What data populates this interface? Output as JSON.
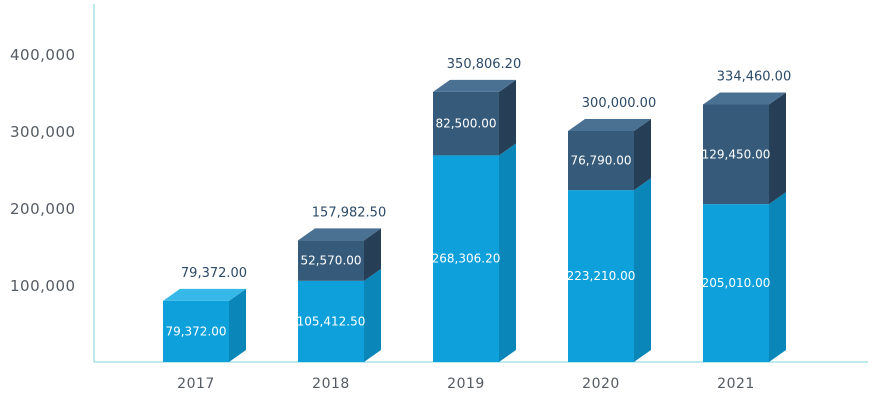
{
  "chart_data": {
    "type": "bar",
    "stacked": true,
    "style": "3d",
    "categories": [
      "2017",
      "2018",
      "2019",
      "2020",
      "2021"
    ],
    "series": [
      {
        "values": [
          79372.0,
          105412.5,
          268306.2,
          223210.0,
          205010.0
        ],
        "labels": [
          "79,372.00",
          "105,412.50",
          "268,306.20",
          "223,210.00",
          "205,010.00"
        ]
      },
      {
        "values": [
          0,
          52570.0,
          82500.0,
          76790.0,
          129450.0
        ],
        "labels": [
          "",
          "52,570.00",
          "82,500.00",
          "76,790.00",
          "129,450.00"
        ]
      }
    ],
    "totals": [
      "79,372.00",
      "157,982.50",
      "350,806.20",
      "300,000.00",
      "334,460.00"
    ],
    "y_ticks": [
      {
        "value": 100000,
        "label": "100,000"
      },
      {
        "value": 200000,
        "label": "200,000"
      },
      {
        "value": 300000,
        "label": "300,000"
      },
      {
        "value": 400000,
        "label": "400,000"
      }
    ],
    "ylim": [
      0,
      430000
    ],
    "grid": false,
    "colors": {
      "axis": "#7fd3dd",
      "bottom_front": "#0ea0da",
      "bottom_side": "#0b86b8",
      "bottom_top": "#36b8e8",
      "top_front": "#355a7a",
      "top_side": "#263f57",
      "top_top": "#4a7092"
    }
  }
}
